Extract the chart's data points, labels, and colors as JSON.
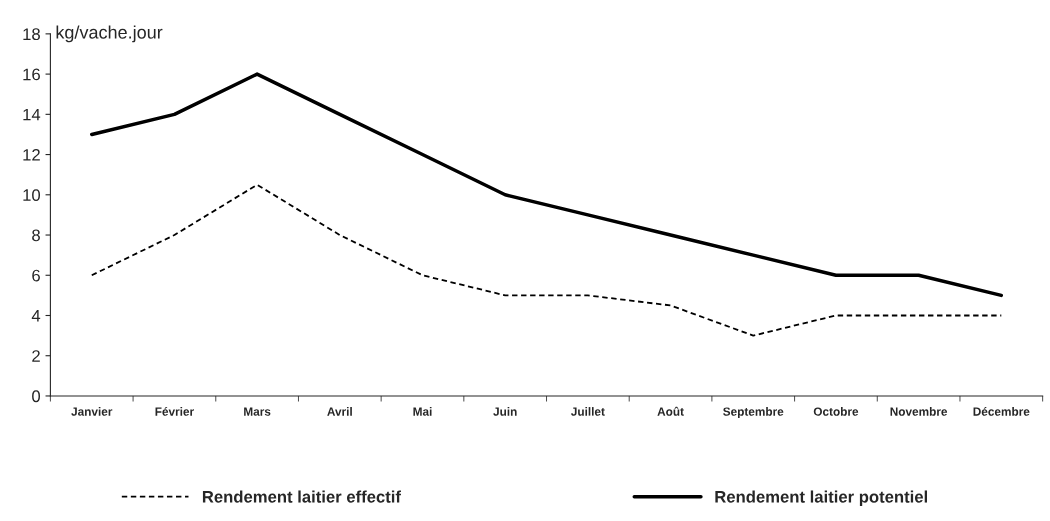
{
  "chart_data": {
    "type": "line",
    "ylabel": "kg/vache.jour",
    "categories": [
      "Janvier",
      "Février",
      "Mars",
      "Avril",
      "Mai",
      "Juin",
      "Juillet",
      "Août",
      "Septembre",
      "Octobre",
      "Novembre",
      "Décembre"
    ],
    "series": [
      {
        "name": "Rendement laitier effectif",
        "color": "#000000",
        "line_style": "dashed",
        "values": [
          6,
          8,
          10.5,
          8,
          6,
          5,
          5,
          4.5,
          3,
          4,
          4,
          4
        ]
      },
      {
        "name": "Rendement laitier potentiel",
        "color": "#000000",
        "line_style": "solid",
        "values": [
          13,
          14,
          16,
          14,
          12,
          10,
          9,
          8,
          7,
          6,
          6,
          5
        ]
      }
    ],
    "ylim": [
      0,
      18
    ],
    "yticks": [
      0,
      2,
      4,
      6,
      8,
      10,
      12,
      14,
      16,
      18
    ],
    "grid": false,
    "legend": "bottom",
    "marker": "none"
  }
}
